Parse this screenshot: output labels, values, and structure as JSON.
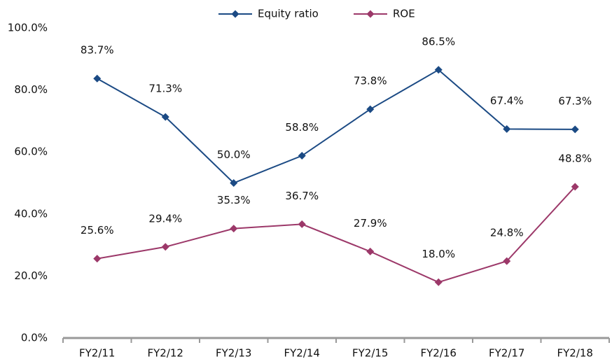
{
  "chart_data": {
    "type": "line",
    "categories": [
      "FY2/11",
      "FY2/12",
      "FY2/13",
      "FY2/14",
      "FY2/15",
      "FY2/16",
      "FY2/17",
      "FY2/18"
    ],
    "series": [
      {
        "name": "Equity ratio",
        "color": "#1b4a84",
        "values": [
          83.7,
          71.3,
          50.0,
          58.8,
          73.8,
          86.5,
          67.4,
          67.3
        ],
        "value_labels": [
          "83.7%",
          "71.3%",
          "50.0%",
          "58.8%",
          "73.8%",
          "86.5%",
          "67.4%",
          "67.3%"
        ]
      },
      {
        "name": "ROE",
        "color": "#9c3869",
        "values": [
          25.6,
          29.4,
          35.3,
          36.7,
          27.9,
          18.0,
          24.8,
          48.8
        ],
        "value_labels": [
          "25.6%",
          "29.4%",
          "35.3%",
          "36.7%",
          "27.9%",
          "18.0%",
          "24.8%",
          "48.8%"
        ]
      }
    ],
    "ylim": [
      0,
      100
    ],
    "yticks": [
      {
        "value": 0,
        "label": "0.0%"
      },
      {
        "value": 20,
        "label": "20.0%"
      },
      {
        "value": 40,
        "label": "40.0%"
      },
      {
        "value": 60,
        "label": "60.0%"
      },
      {
        "value": 80,
        "label": "80.0%"
      },
      {
        "value": 100,
        "label": "100.0%"
      }
    ],
    "grid": false,
    "legend": "top"
  }
}
